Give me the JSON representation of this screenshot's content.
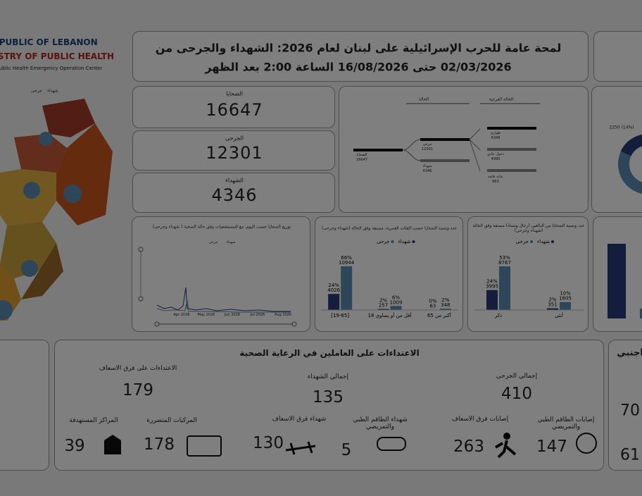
{
  "header": {
    "country": "REPUBLIC OF LEBANON",
    "ministry": "MINISTRY OF PUBLIC HEALTH",
    "center": "Public Health Emergency Operation Center",
    "map_legend": [
      "جرحى",
      "شهداء"
    ]
  },
  "title": [
    "لمحة عامة للحرب الإسرائيلية على لبنان لعام 2026: الشهداء والجرحى من",
    "02/03/2026 حتى 16/08/2026 الساعة 2:00 بعد الظهر"
  ],
  "kpis": [
    {
      "label": "الضحايا",
      "value": 16647
    },
    {
      "label": "الجرحى",
      "value": 12301
    },
    {
      "label": "الشهداء",
      "value": 4346
    }
  ],
  "tree": {
    "headers": [
      "الحالة",
      "الحالة الفرعية"
    ],
    "root": {
      "label": "الضحايا",
      "value": 16647
    },
    "status": [
      {
        "label": "جرحى",
        "value": 12301
      },
      {
        "label": "شهداء",
        "value": 4346
      }
    ],
    "substatus": [
      {
        "label": "طوارئ",
        "value": 6348
      },
      {
        "label": "دخول عادي",
        "value": 4990
      },
      {
        "label": "عناية فائقة",
        "value": 963
      }
    ]
  },
  "gender_donut": {
    "label": "2250 (14%)"
  },
  "daily_chart": {
    "title": "توزيع الضحايا حسب اليوم، مع للمستشفيات وفق حالة الضحية ( شهداء وجرحى)",
    "legend": [
      "جرحى",
      "شهداء"
    ],
    "x_labels": [
      "Apr 2026",
      "May 2026",
      "Jun 2026",
      "Jul 2026",
      "Aug 2026"
    ]
  },
  "age_chart": {
    "type": "bar",
    "title": "عدد ونسبة الضحايا حسب الفئات العمرية، مصنفة وفق الحالة (شهداء وجرحى)",
    "categories": [
      "[19-65]",
      "أقل من أو يساوي 18",
      "أكبر من 65"
    ],
    "series": [
      {
        "name": "شهداء",
        "color": "#2b3a78",
        "values": [
          4026,
          257,
          63
        ],
        "percent_labels": [
          "24%",
          "2%",
          "0%"
        ]
      },
      {
        "name": "جرحى",
        "color": "#5d8db5",
        "values": [
          10944,
          1009,
          348
        ],
        "percent_labels": [
          "66%",
          "6%",
          "2%"
        ]
      }
    ]
  },
  "gender_chart": {
    "type": "bar",
    "title": "عدد ونسبة الضحايا من البالغين (رجال ونساء) مصنفة وفق الحالة (شهداء وجرحى)",
    "categories": [
      "ذكر",
      "أنثى"
    ],
    "series": [
      {
        "name": "شهداء",
        "color": "#2b3a78",
        "values": [
          3995,
          351
        ],
        "percent_labels": [
          "24%",
          "2%"
        ]
      },
      {
        "name": "جرحى",
        "color": "#5d8db5",
        "values": [
          8767,
          1605
        ],
        "percent_labels": [
          "53%",
          "10%"
        ]
      }
    ]
  },
  "health_workers": {
    "title": "الاعتداءات على العاملين في الرعاية الصحية",
    "totals": [
      {
        "label": "الاعتداءات على فرق الاسعاف",
        "value": 179
      },
      {
        "label": "إجمالي الشهداء",
        "value": 135
      },
      {
        "label": "إجمالي الجرحى",
        "value": 410
      }
    ],
    "details": [
      {
        "label": "المراكز المستهدفة",
        "value": 39
      },
      {
        "label": "المركبات المتضررة",
        "value": 178
      },
      {
        "label": "شهداء فرق الاسعاف",
        "value": 130
      },
      {
        "label": "شهداء الطاقم الطبي والتمريضي",
        "value": 5
      },
      {
        "label": "إصابات فرق الاسعاف",
        "value": 263
      },
      {
        "label": "إصابات الطاقم الطبي والتمريضي",
        "value": 147
      }
    ]
  },
  "right_panel": {
    "title": "اجنبي",
    "values": [
      70,
      61
    ]
  }
}
